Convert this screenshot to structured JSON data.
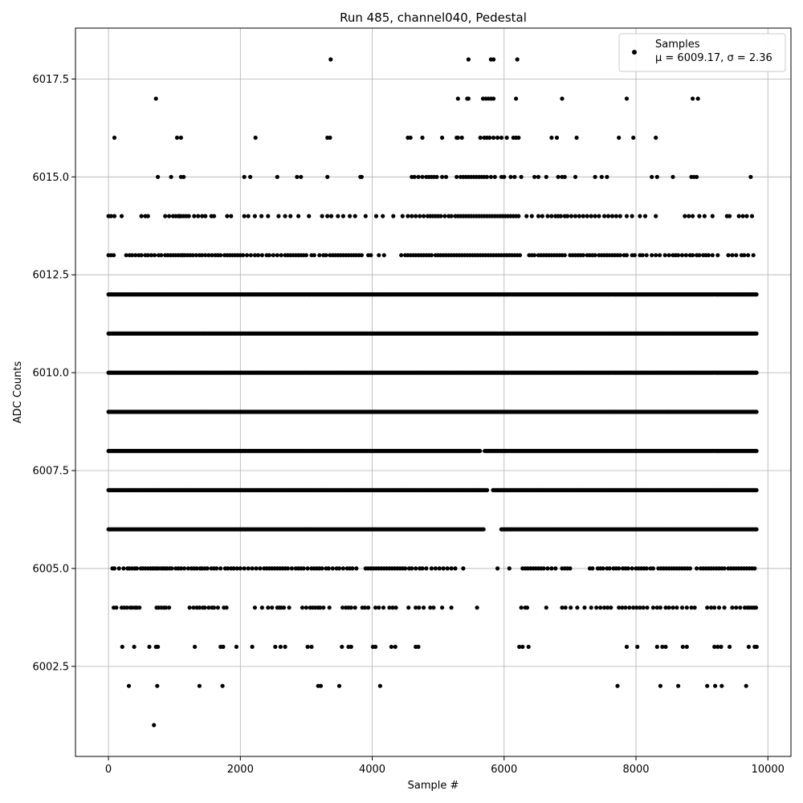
{
  "chart_data": {
    "type": "scatter",
    "title": "Run 485, channel040, Pedestal",
    "xlabel": "Sample #",
    "ylabel": "ADC Counts",
    "xlim": [
      -500,
      10350
    ],
    "ylim": [
      6000.2,
      6018.8
    ],
    "xticks": [
      0,
      2000,
      4000,
      6000,
      8000,
      10000
    ],
    "yticks": [
      6002.5,
      6005.0,
      6007.5,
      6010.0,
      6012.5,
      6015.0,
      6017.5
    ],
    "xtick_labels": [
      "0",
      "2000",
      "4000",
      "6000",
      "8000",
      "10000"
    ],
    "ytick_labels": [
      "6002.5",
      "6005.0",
      "6007.5",
      "6010.0",
      "6012.5",
      "6015.0",
      "6017.5"
    ],
    "grid": true,
    "legend": {
      "placement": "top-right",
      "entries": [
        {
          "label": "Samples",
          "stats": "μ = 6009.17, σ = 2.36",
          "color": "#000000"
        }
      ]
    },
    "series": [
      {
        "name": "Samples",
        "color": "#000000",
        "x_start": 0,
        "x_end": 9840,
        "levels": [
          {
            "y": 6001,
            "x": [
              690
            ]
          },
          {
            "y": 6002,
            "x": [
              310,
              740,
              1380,
              1730,
              3180,
              3220,
              3500,
              4120,
              7720,
              8370,
              8640,
              9080,
              9200,
              9300,
              9670
            ]
          },
          {
            "y": 6003,
            "x": [
              210,
              390,
              620,
              720,
              750,
              1310,
              1700,
              1740,
              1940,
              2180,
              2530,
              2610,
              2680,
              3020,
              3080,
              3540,
              3640,
              3680,
              4010,
              4050,
              4290,
              4350,
              4660,
              4700,
              6230,
              6280,
              6370,
              7860,
              8020,
              8320,
              8400,
              8450,
              8710,
              8770,
              9190,
              9240,
              9290,
              9420,
              9710,
              9800,
              9830
            ]
          },
          {
            "y": 6004,
            "x": [
              80,
              120,
              200,
              240,
              280,
              330,
              360,
              400,
              430,
              470,
              730,
              760,
              800,
              840,
              870,
              920,
              1230,
              1290,
              1340,
              1380,
              1430,
              1460,
              1520,
              1570,
              1600,
              1660,
              1750,
              1790,
              2220,
              2330,
              2420,
              2480,
              2560,
              2590,
              2620,
              2660,
              2740,
              2940,
              3000,
              3060,
              3100,
              3140,
              3180,
              3210,
              3260,
              3350,
              3550,
              3600,
              3640,
              3680,
              3740,
              3850,
              3890,
              3940,
              4050,
              4100,
              4170,
              4260,
              4310,
              4360,
              4550,
              4660,
              4710,
              4780,
              4880,
              4930,
              5060,
              5200,
              5590,
              6260,
              6320,
              6350,
              6640,
              6880,
              6930,
              7010,
              7110,
              7220,
              7320,
              7400,
              7460,
              7520,
              7570,
              7620,
              7740,
              7790,
              7840,
              7900,
              7960,
              8010,
              8060,
              8110,
              8170,
              8260,
              8320,
              8370,
              8450,
              8500,
              8560,
              8620,
              8700,
              8770,
              8840,
              8890,
              9080,
              9140,
              9190,
              9260,
              9340,
              9460,
              9520,
              9580,
              9650,
              9690,
              9720,
              9760,
              9790,
              9820
            ]
          },
          {
            "y": 6005,
            "x": [
              60,
              90,
              160,
              230,
              290,
              320,
              360,
              400,
              430,
              490,
              520,
              560,
              600,
              640,
              670,
              700,
              730,
              760,
              800,
              830,
              860,
              890,
              930,
              960,
              1020,
              1060,
              1100,
              1150,
              1210,
              1260,
              1300,
              1340,
              1390,
              1420,
              1460,
              1500,
              1560,
              1600,
              1640,
              1700,
              1770,
              1810,
              1860,
              1900,
              1950,
              2000,
              2060,
              2120,
              2180,
              2240,
              2300,
              2360,
              2400,
              2440,
              2480,
              2520,
              2560,
              2600,
              2640,
              2680,
              2720,
              2780,
              2840,
              2880,
              2920,
              2960,
              3020,
              3080,
              3120,
              3160,
              3200,
              3240,
              3300,
              3340,
              3400,
              3460,
              3500,
              3560,
              3620,
              3660,
              3700,
              3760,
              3900,
              3940,
              3980,
              4020,
              4060,
              4100,
              4140,
              4180,
              4220,
              4260,
              4300,
              4340,
              4380,
              4420,
              4460,
              4500,
              4560,
              4600,
              4660,
              4720,
              4760,
              4820,
              4900,
              4960,
              5020,
              5080,
              5140,
              5200,
              5260,
              5380,
              5900,
              6080,
              6280,
              6320,
              6360,
              6400,
              6440,
              6480,
              6520,
              6560,
              6600,
              6660,
              6720,
              6780,
              6880,
              6920,
              6960,
              7000,
              7300,
              7340,
              7420,
              7460,
              7500,
              7560,
              7600,
              7660,
              7700,
              7740,
              7800,
              7840,
              7880,
              7940,
              8000,
              8040,
              8080,
              8120,
              8160,
              8220,
              8260,
              8340,
              8380,
              8420,
              8460,
              8500,
              8540,
              8580,
              8620,
              8660,
              8700,
              8740,
              8780,
              8820,
              8920,
              8980,
              9020,
              9060,
              9100,
              9140,
              9180,
              9220,
              9260,
              9300,
              9340,
              9400,
              9440,
              9480,
              9520,
              9560,
              9600,
              9640,
              9680,
              9720,
              9760,
              9800
            ]
          },
          {
            "y": 6006,
            "x_gaps": [
              [
                5700,
                5950
              ]
            ]
          },
          {
            "y": 6007,
            "x_gaps": [
              [
                5760,
                5830
              ]
            ]
          },
          {
            "y": 6008,
            "x_gaps": [
              [
                5640,
                5700
              ]
            ]
          },
          {
            "y": 6009,
            "x_gaps": []
          },
          {
            "y": 6010,
            "x_gaps": []
          },
          {
            "y": 6011,
            "x_gaps": []
          },
          {
            "y": 6012,
            "x_gaps": []
          },
          {
            "y": 6013,
            "x": [
              0,
              40,
              80,
              270,
              320,
              360,
              410,
              460,
              500,
              560,
              600,
              650,
              700,
              760,
              800,
              860,
              900,
              940,
              980,
              1020,
              1060,
              1100,
              1130,
              1160,
              1200,
              1240,
              1280,
              1330,
              1380,
              1420,
              1470,
              1520,
              1570,
              1620,
              1660,
              1700,
              1760,
              1800,
              1840,
              1880,
              1920,
              1960,
              2000,
              2040,
              2100,
              2160,
              2220,
              2270,
              2330,
              2400,
              2440,
              2500,
              2560,
              2620,
              2680,
              2720,
              2760,
              2800,
              2840,
              2880,
              2920,
              2960,
              3000,
              3080,
              3120,
              3200,
              3260,
              3300,
              3360,
              3400,
              3440,
              3480,
              3520,
              3560,
              3600,
              3640,
              3680,
              3720,
              3760,
              3800,
              3840,
              3940,
              3980,
              4100,
              4180,
              4440,
              4500,
              4540,
              4580,
              4620,
              4660,
              4700,
              4740,
              4780,
              4820,
              4860,
              4900,
              4960,
              5000,
              5040,
              5080,
              5120,
              5160,
              5200,
              5240,
              5280,
              5320,
              5360,
              5400,
              5440,
              5480,
              5520,
              5560,
              5600,
              5640,
              5680,
              5720,
              5760,
              5800,
              5840,
              5880,
              5920,
              5960,
              6000,
              6040,
              6080,
              6120,
              6160,
              6200,
              6240,
              6380,
              6420,
              6460,
              6520,
              6560,
              6600,
              6640,
              6680,
              6720,
              6760,
              6800,
              6840,
              6880,
              6920,
              7000,
              7040,
              7080,
              7120,
              7160,
              7200,
              7260,
              7300,
              7340,
              7380,
              7440,
              7480,
              7520,
              7560,
              7600,
              7640,
              7680,
              7720,
              7760,
              7820,
              7860,
              7940,
              7980,
              8060,
              8100,
              8160,
              8240,
              8300,
              8360,
              8440,
              8500,
              8560,
              8600,
              8640,
              8700,
              8760,
              8820,
              8860,
              8920,
              8960,
              9020,
              9060,
              9100,
              9160,
              9240,
              9400,
              9460,
              9520,
              9600,
              9640,
              9700,
              9780
            ]
          },
          {
            "y": 6014,
            "x": [
              0,
              40,
              90,
              200,
              500,
              560,
              600,
              860,
              920,
              980,
              1020,
              1060,
              1080,
              1100,
              1140,
              1180,
              1220,
              1300,
              1360,
              1420,
              1470,
              1560,
              1600,
              1800,
              1860,
              2060,
              2120,
              2220,
              2320,
              2420,
              2580,
              2680,
              2760,
              2880,
              3040,
              3240,
              3320,
              3380,
              3480,
              3560,
              3660,
              3740,
              3900,
              4060,
              4160,
              4320,
              4460,
              4540,
              4600,
              4660,
              4720,
              4780,
              4840,
              4880,
              4920,
              4960,
              5000,
              5040,
              5100,
              5160,
              5200,
              5260,
              5300,
              5340,
              5380,
              5420,
              5460,
              5500,
              5540,
              5580,
              5620,
              5660,
              5700,
              5740,
              5780,
              5820,
              5860,
              5900,
              5940,
              5980,
              6020,
              6060,
              6100,
              6140,
              6180,
              6220,
              6340,
              6420,
              6520,
              6580,
              6660,
              6720,
              6780,
              6820,
              6860,
              6920,
              6960,
              7020,
              7080,
              7140,
              7200,
              7260,
              7320,
              7380,
              7440,
              7520,
              7580,
              7640,
              7700,
              7760,
              7860,
              7940,
              8060,
              8140,
              8300,
              8740,
              8800,
              8860,
              8960,
              9040,
              9160,
              9380,
              9420,
              9560,
              9620,
              9680,
              9760
            ]
          },
          {
            "y": 6015,
            "x": [
              750,
              950,
              1100,
              1140,
              2060,
              2150,
              2560,
              2860,
              2920,
              3320,
              3820,
              3840,
              4600,
              4640,
              4700,
              4760,
              4820,
              4860,
              4900,
              4940,
              4980,
              5060,
              5120,
              5280,
              5340,
              5380,
              5420,
              5460,
              5500,
              5540,
              5580,
              5620,
              5660,
              5700,
              5740,
              5800,
              5860,
              5960,
              6000,
              6100,
              6160,
              6260,
              6460,
              6520,
              6640,
              6820,
              6880,
              6920,
              7080,
              7380,
              7480,
              7560,
              8240,
              8320,
              8560,
              8840,
              8880,
              8920,
              9740
            ]
          },
          {
            "y": 6016,
            "x": [
              90,
              1040,
              1100,
              2230,
              3320,
              3360,
              4540,
              4580,
              4760,
              5060,
              5280,
              5300,
              5360,
              5640,
              5700,
              5740,
              5780,
              5840,
              5900,
              5960,
              6040,
              6140,
              6180,
              6220,
              6720,
              6800,
              7100,
              7740,
              7960,
              8300
            ]
          },
          {
            "y": 6017,
            "x": [
              720,
              5300,
              5440,
              5460,
              5680,
              5720,
              5760,
              5800,
              5840,
              6180,
              6880,
              7860,
              8860,
              8940
            ]
          },
          {
            "y": 6018,
            "x": [
              3370,
              5460,
              5800,
              5840,
              6200
            ]
          }
        ]
      }
    ]
  }
}
